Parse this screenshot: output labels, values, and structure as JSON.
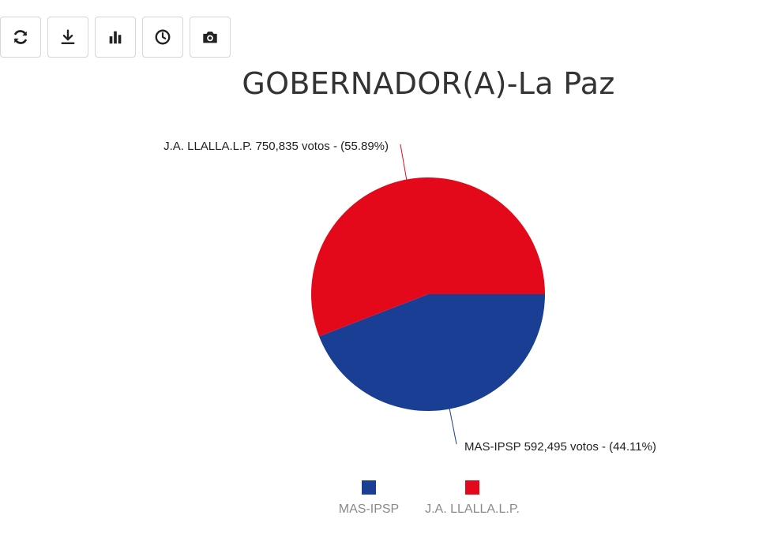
{
  "toolbar": {
    "buttons": [
      {
        "name": "refresh-icon"
      },
      {
        "name": "download-icon"
      },
      {
        "name": "bar-chart-icon"
      },
      {
        "name": "clock-icon"
      },
      {
        "name": "camera-icon"
      }
    ]
  },
  "chart_data": {
    "type": "pie",
    "title": "GOBERNADOR(A)-La Paz",
    "slices": [
      {
        "label": "MAS-IPSP",
        "value": 592495,
        "percent": 44.11,
        "color": "#1a3e93",
        "data_label": "MAS-IPSP 592,495 votos - (44.11%)"
      },
      {
        "label": "J.A. LLALLA.L.P.",
        "value": 750835,
        "percent": 55.89,
        "color": "#e3091a",
        "data_label": "J.A. LLALLA.L.P. 750,835 votos - (55.89%)"
      }
    ],
    "legend": [
      "MAS-IPSP",
      "J.A. LLALLA.L.P."
    ],
    "legend_position": "bottom"
  }
}
